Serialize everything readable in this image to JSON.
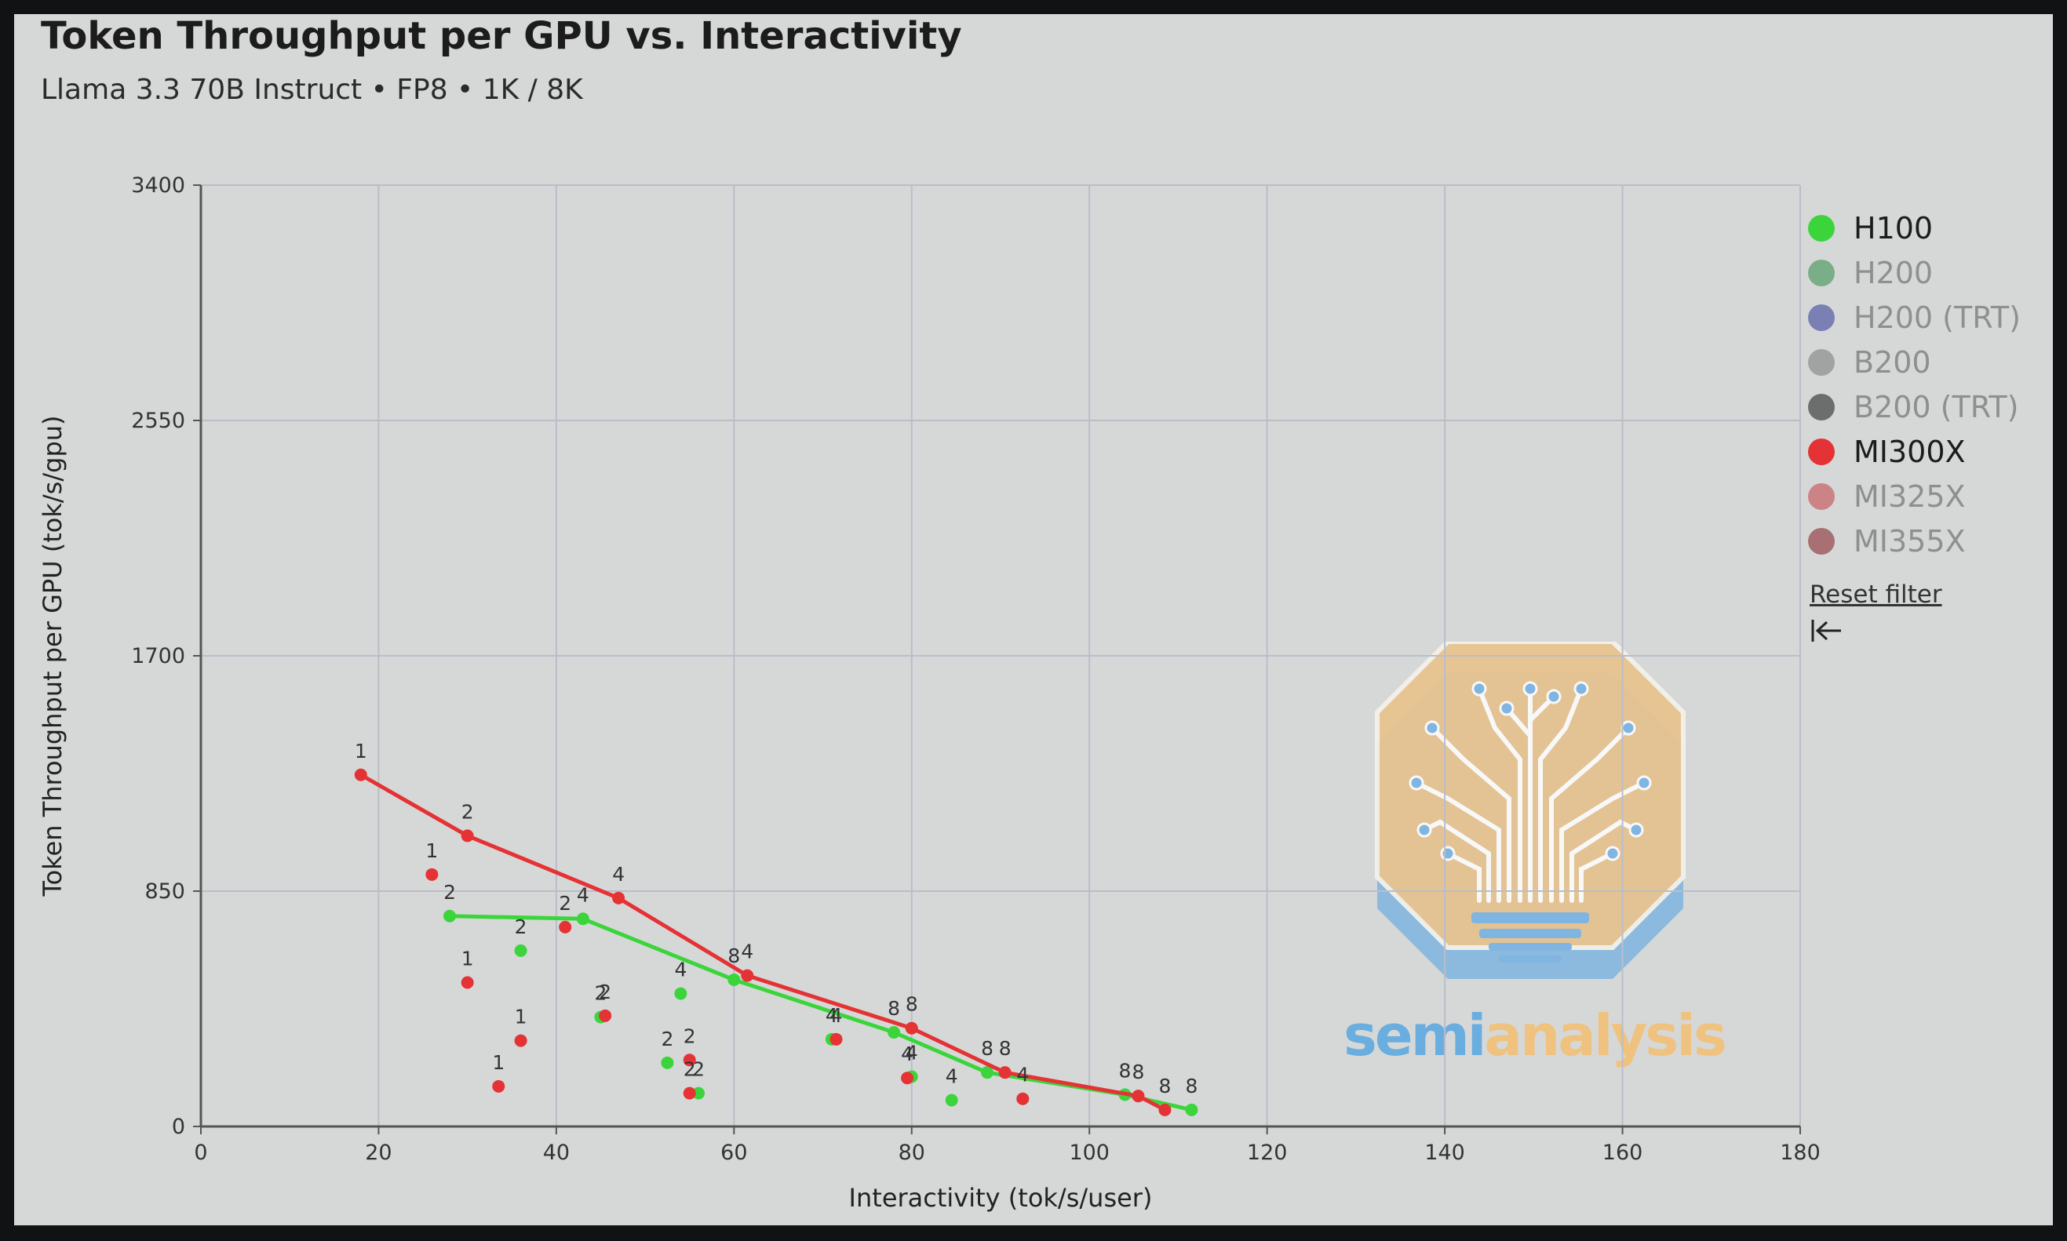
{
  "header": {
    "title": "Token Throughput per GPU vs. Interactivity",
    "subtitle": "Llama 3.3 70B Instruct • FP8 • 1K / 8K"
  },
  "legend": {
    "items": [
      {
        "label": "H100",
        "color": "#3bd53b",
        "active": true
      },
      {
        "label": "H200",
        "color": "#7aae86",
        "active": false
      },
      {
        "label": "H200 (TRT)",
        "color": "#7a7fb4",
        "active": false
      },
      {
        "label": "B200",
        "color": "#a1a3a3",
        "active": false
      },
      {
        "label": "B200 (TRT)",
        "color": "#6c6e6e",
        "active": false
      },
      {
        "label": "MI300X",
        "color": "#e53234",
        "active": true
      },
      {
        "label": "MI325X",
        "color": "#cc8386",
        "active": false
      },
      {
        "label": "MI355X",
        "color": "#a87073",
        "active": false
      }
    ],
    "reset_label": "Reset filter",
    "collapse_icon": "collapse-left-icon"
  },
  "watermark": {
    "text_part1": "semi",
    "text_part2": "analysis",
    "color1": "#6aaee0",
    "color2": "#f0c27f"
  },
  "chart_data": {
    "type": "scatter",
    "title": "Token Throughput per GPU vs. Interactivity",
    "subtitle": "Llama 3.3 70B Instruct • FP8 • 1K / 8K",
    "xlabel": "Interactivity (tok/s/user)",
    "ylabel": "Token Throughput per GPU (tok/s/gpu)",
    "xlim": [
      0,
      180
    ],
    "ylim": [
      0,
      3400
    ],
    "xticks": [
      0,
      20,
      40,
      60,
      80,
      100,
      120,
      140,
      160,
      180
    ],
    "yticks": [
      0,
      850,
      1700,
      2550,
      3400
    ],
    "grid": true,
    "legend_position": "right",
    "series": [
      {
        "name": "H100",
        "color": "#3bd53b",
        "frontier": [
          {
            "x": 28,
            "y": 760,
            "label": "2"
          },
          {
            "x": 43,
            "y": 750,
            "label": "4"
          },
          {
            "x": 60,
            "y": 530,
            "label": "8"
          },
          {
            "x": 78,
            "y": 340,
            "label": "8"
          },
          {
            "x": 88.5,
            "y": 195,
            "label": "8"
          },
          {
            "x": 104,
            "y": 115,
            "label": "8"
          },
          {
            "x": 111.5,
            "y": 60,
            "label": "8"
          }
        ],
        "points": [
          {
            "x": 36,
            "y": 635,
            "label": "2"
          },
          {
            "x": 45,
            "y": 395,
            "label": "2"
          },
          {
            "x": 52.5,
            "y": 230,
            "label": "2"
          },
          {
            "x": 56,
            "y": 120,
            "label": "2"
          },
          {
            "x": 54,
            "y": 480,
            "label": "4"
          },
          {
            "x": 71,
            "y": 315,
            "label": "4"
          },
          {
            "x": 80,
            "y": 180,
            "label": "4"
          },
          {
            "x": 84.5,
            "y": 95,
            "label": "4"
          }
        ]
      },
      {
        "name": "MI300X",
        "color": "#e53234",
        "frontier": [
          {
            "x": 18,
            "y": 1270,
            "label": "1"
          },
          {
            "x": 30,
            "y": 1050,
            "label": "2"
          },
          {
            "x": 47,
            "y": 825,
            "label": "4"
          },
          {
            "x": 61.5,
            "y": 545,
            "label": "4"
          },
          {
            "x": 80,
            "y": 355,
            "label": "8"
          },
          {
            "x": 90.5,
            "y": 195,
            "label": "8"
          },
          {
            "x": 105.5,
            "y": 110,
            "label": "8"
          },
          {
            "x": 108.5,
            "y": 60,
            "label": "8"
          }
        ],
        "points": [
          {
            "x": 26,
            "y": 910,
            "label": "1"
          },
          {
            "x": 30,
            "y": 520,
            "label": "1"
          },
          {
            "x": 36,
            "y": 310,
            "label": "1"
          },
          {
            "x": 33.5,
            "y": 145,
            "label": "1"
          },
          {
            "x": 41,
            "y": 720,
            "label": "2"
          },
          {
            "x": 45.5,
            "y": 400,
            "label": "2"
          },
          {
            "x": 55,
            "y": 240,
            "label": "2"
          },
          {
            "x": 55,
            "y": 120,
            "label": "2"
          },
          {
            "x": 71.5,
            "y": 315,
            "label": "4"
          },
          {
            "x": 79.5,
            "y": 175,
            "label": "4"
          },
          {
            "x": 92.5,
            "y": 100,
            "label": "4"
          }
        ]
      }
    ]
  }
}
